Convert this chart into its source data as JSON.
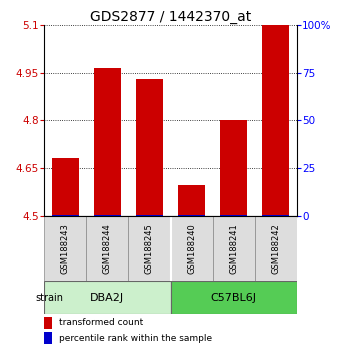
{
  "title": "GDS2877 / 1442370_at",
  "samples": [
    "GSM188243",
    "GSM188244",
    "GSM188245",
    "GSM188240",
    "GSM188241",
    "GSM188242"
  ],
  "group_labels": [
    "DBA2J",
    "C57BL6J"
  ],
  "group_colors": [
    "#ccf0cc",
    "#55cc55"
  ],
  "transformed_counts": [
    4.68,
    4.965,
    4.93,
    4.595,
    4.8,
    5.1
  ],
  "percentile_ranks": [
    3,
    4,
    2,
    3,
    3,
    4
  ],
  "ylim_left": [
    4.5,
    5.1
  ],
  "ylim_right": [
    0,
    100
  ],
  "yticks_left": [
    4.5,
    4.65,
    4.8,
    4.95,
    5.1
  ],
  "yticks_right": [
    0,
    25,
    50,
    75,
    100
  ],
  "ytick_labels_left": [
    "4.5",
    "4.65",
    "4.8",
    "4.95",
    "5.1"
  ],
  "ytick_labels_right": [
    "0",
    "25",
    "50",
    "75",
    "100%"
  ],
  "bar_color_red": "#cc0000",
  "bar_color_blue": "#0000cc",
  "bar_width": 0.65,
  "title_fontsize": 10,
  "tick_fontsize": 7.5,
  "sample_fontsize": 6,
  "group_fontsize": 8,
  "legend_fontsize": 6.5,
  "strain_label": "strain",
  "base_value": 4.5,
  "percentile_scale": 0.004
}
